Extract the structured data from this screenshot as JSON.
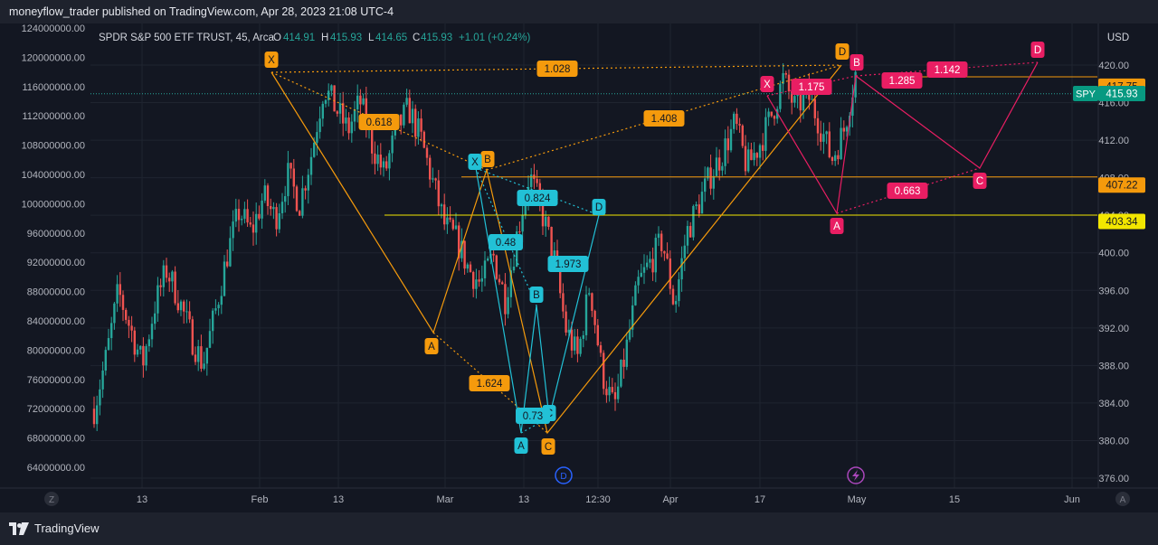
{
  "header": {
    "publisher_line": "moneyflow_trader published on TradingView.com, Apr 28, 2023 21:08 UTC-4"
  },
  "legend": {
    "symbol": "SPDR S&P 500 ETF TRUST, 45, Arca",
    "open_label": "O",
    "open": "414.91",
    "high_label": "H",
    "high": "415.93",
    "low_label": "L",
    "low": "414.65",
    "close_label": "C",
    "close": "415.93",
    "change": "+1.01 (+0.24%)"
  },
  "footer": {
    "brand": "TradingView"
  },
  "colors": {
    "bg": "#131722",
    "grid": "#1f2430",
    "axis_text": "#b2b5be",
    "up": "#26a69a",
    "down": "#ef5350",
    "orange": "#f59a0c",
    "cyan": "#22c1d6",
    "pink": "#e91e63",
    "yellow": "#f2e600"
  },
  "chart_data": {
    "type": "candlestick",
    "symbol": "SPY",
    "interval": "45",
    "right_axis": {
      "unit": "USD",
      "range": [
        375,
        423
      ],
      "ticks": [
        "420.00",
        "416.00",
        "412.00",
        "408.00",
        "404.00",
        "400.00",
        "396.00",
        "392.00",
        "388.00",
        "384.00",
        "380.00",
        "376.00"
      ]
    },
    "left_axis": {
      "range": [
        61500000,
        124800000
      ],
      "ticks": [
        "124000000.00",
        "120000000.00",
        "116000000.00",
        "112000000.00",
        "108000000.00",
        "104000000.00",
        "100000000.00",
        "96000000.00",
        "92000000.00",
        "88000000.00",
        "84000000.00",
        "80000000.00",
        "76000000.00",
        "72000000.00",
        "68000000.00",
        "64000000.00"
      ]
    },
    "x_ticks": [
      "13",
      "Feb",
      "13",
      "Mar",
      "13",
      "12:30",
      "Apr",
      "17",
      "May",
      "15",
      "Jun"
    ],
    "last_price": "415.93",
    "price_labels": [
      {
        "value": 417.75,
        "text": "417.75",
        "color": "#f59a0c"
      },
      {
        "value": 407.22,
        "text": "407.22",
        "color": "#f59a0c"
      },
      {
        "value": 403.34,
        "text": "403.34",
        "color": "#f2e600"
      }
    ],
    "price_path": [
      [
        0,
        72
      ],
      [
        3,
        79
      ],
      [
        6,
        88
      ],
      [
        9,
        83
      ],
      [
        12,
        78
      ],
      [
        15,
        86
      ],
      [
        18,
        91
      ],
      [
        21,
        87
      ],
      [
        24,
        82
      ],
      [
        27,
        78
      ],
      [
        30,
        85
      ],
      [
        33,
        93
      ],
      [
        36,
        99
      ],
      [
        39,
        96
      ],
      [
        42,
        101
      ],
      [
        45,
        98
      ],
      [
        48,
        104
      ],
      [
        51,
        100
      ],
      [
        54,
        107
      ],
      [
        57,
        116
      ],
      [
        60,
        113
      ],
      [
        63,
        110
      ],
      [
        66,
        114
      ],
      [
        69,
        108
      ],
      [
        72,
        104
      ],
      [
        75,
        110
      ],
      [
        78,
        113
      ],
      [
        81,
        109
      ],
      [
        84,
        103
      ],
      [
        87,
        97
      ],
      [
        90,
        95
      ],
      [
        93,
        91
      ],
      [
        96,
        89
      ],
      [
        99,
        93
      ],
      [
        102,
        87
      ],
      [
        105,
        96
      ],
      [
        108,
        104
      ],
      [
        111,
        99
      ],
      [
        114,
        93
      ],
      [
        117,
        83
      ],
      [
        120,
        79
      ],
      [
        123,
        89
      ],
      [
        126,
        77
      ],
      [
        129,
        72
      ],
      [
        132,
        80
      ],
      [
        135,
        89
      ],
      [
        138,
        92
      ],
      [
        141,
        95
      ],
      [
        144,
        86
      ],
      [
        147,
        96
      ],
      [
        150,
        100
      ],
      [
        153,
        104
      ],
      [
        156,
        107
      ],
      [
        159,
        111
      ],
      [
        162,
        105
      ],
      [
        165,
        108
      ],
      [
        168,
        112
      ],
      [
        171,
        117
      ],
      [
        174,
        113
      ],
      [
        177,
        115
      ],
      [
        180,
        111
      ],
      [
        183,
        106
      ],
      [
        186,
        110
      ],
      [
        189,
        118
      ]
    ],
    "pattern_labels": {
      "orange": [
        "X",
        "A",
        "B",
        "C",
        "D",
        "0.618",
        "1.624",
        "1.028",
        "1.408"
      ],
      "cyan": [
        "X",
        "A",
        "B",
        "C",
        "D",
        "0.824",
        "0.48",
        "1.973",
        "0.73"
      ],
      "pink": [
        "X",
        "A",
        "B",
        "C",
        "D",
        "1.175",
        "1.285",
        "0.663",
        "1.142"
      ]
    },
    "volume_tag": "SPY"
  }
}
